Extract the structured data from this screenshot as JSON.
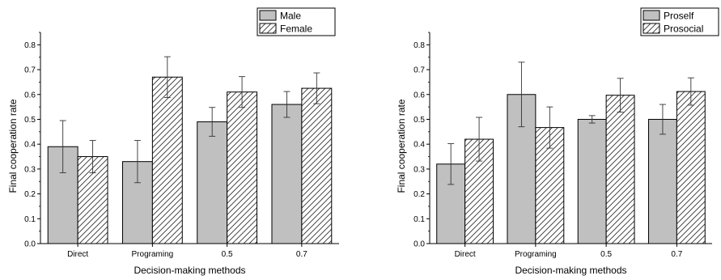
{
  "chart_data": [
    {
      "type": "bar",
      "ylabel": "Final cooperation rate",
      "xlabel": "Decision-making methods",
      "categories": [
        "Direct",
        "Programing",
        "0.5",
        "0.7"
      ],
      "ylim": [
        0,
        0.85
      ],
      "yticks": [
        "0.0",
        "0.1",
        "0.2",
        "0.3",
        "0.4",
        "0.5",
        "0.6",
        "0.7",
        "0.8"
      ],
      "legend_position": "top-right",
      "series": [
        {
          "name": "Male",
          "values": [
            0.39,
            0.33,
            0.49,
            0.56
          ],
          "errors": [
            0.105,
            0.085,
            0.058,
            0.052
          ],
          "fill": "#c0c0c0",
          "pattern": "solid"
        },
        {
          "name": "Female",
          "values": [
            0.35,
            0.67,
            0.61,
            0.625
          ],
          "errors": [
            0.065,
            0.082,
            0.062,
            0.062
          ],
          "fill": "#ffffff",
          "pattern": "hatch"
        }
      ]
    },
    {
      "type": "bar",
      "ylabel": "Final cooperation rate",
      "xlabel": "Decision-making methods",
      "categories": [
        "Direct",
        "Programing",
        "0.5",
        "0.7"
      ],
      "ylim": [
        0,
        0.85
      ],
      "yticks": [
        "0.0",
        "0.1",
        "0.2",
        "0.3",
        "0.4",
        "0.5",
        "0.6",
        "0.7",
        "0.8"
      ],
      "legend_position": "top-right",
      "series": [
        {
          "name": "Proself",
          "values": [
            0.32,
            0.6,
            0.5,
            0.5
          ],
          "errors": [
            0.082,
            0.13,
            0.015,
            0.06
          ],
          "fill": "#c0c0c0",
          "pattern": "solid"
        },
        {
          "name": "Prosocial",
          "values": [
            0.42,
            0.467,
            0.597,
            0.612
          ],
          "errors": [
            0.088,
            0.083,
            0.068,
            0.055
          ],
          "fill": "#ffffff",
          "pattern": "hatch"
        }
      ]
    }
  ]
}
